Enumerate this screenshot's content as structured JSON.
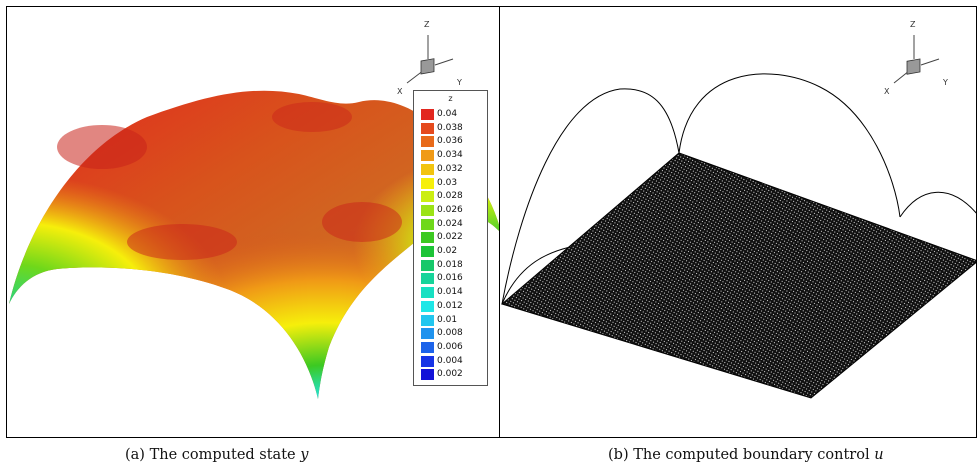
{
  "figure": {
    "panel_a": {
      "caption_prefix": "(a) The computed state ",
      "caption_var": "y",
      "legend": {
        "title": "z",
        "levels": [
          {
            "label": "0.04",
            "color": "#e2271f"
          },
          {
            "label": "0.038",
            "color": "#e54a1d"
          },
          {
            "label": "0.036",
            "color": "#e86a1a"
          },
          {
            "label": "0.034",
            "color": "#f09a16"
          },
          {
            "label": "0.032",
            "color": "#f2c40f"
          },
          {
            "label": "0.03",
            "color": "#f6ef0b"
          },
          {
            "label": "0.028",
            "color": "#cbee11"
          },
          {
            "label": "0.026",
            "color": "#9be316"
          },
          {
            "label": "0.024",
            "color": "#6fd81a"
          },
          {
            "label": "0.022",
            "color": "#3cc922"
          },
          {
            "label": "0.02",
            "color": "#1dc437"
          },
          {
            "label": "0.018",
            "color": "#16c86a"
          },
          {
            "label": "0.016",
            "color": "#17d49a"
          },
          {
            "label": "0.014",
            "color": "#18e0c2"
          },
          {
            "label": "0.012",
            "color": "#1ee7e7"
          },
          {
            "label": "0.01",
            "color": "#22c6ef"
          },
          {
            "label": "0.008",
            "color": "#1f93ee"
          },
          {
            "label": "0.006",
            "color": "#1c63ea"
          },
          {
            "label": "0.004",
            "color": "#1734e6"
          },
          {
            "label": "0.002",
            "color": "#1212d8"
          }
        ]
      },
      "axes": {
        "x": "X",
        "y": "Y",
        "z": "Z"
      }
    },
    "panel_b": {
      "caption_prefix": "(b) The computed boundary control ",
      "caption_var": "u",
      "axes": {
        "x": "X",
        "y": "Y",
        "z": "Z"
      }
    }
  }
}
